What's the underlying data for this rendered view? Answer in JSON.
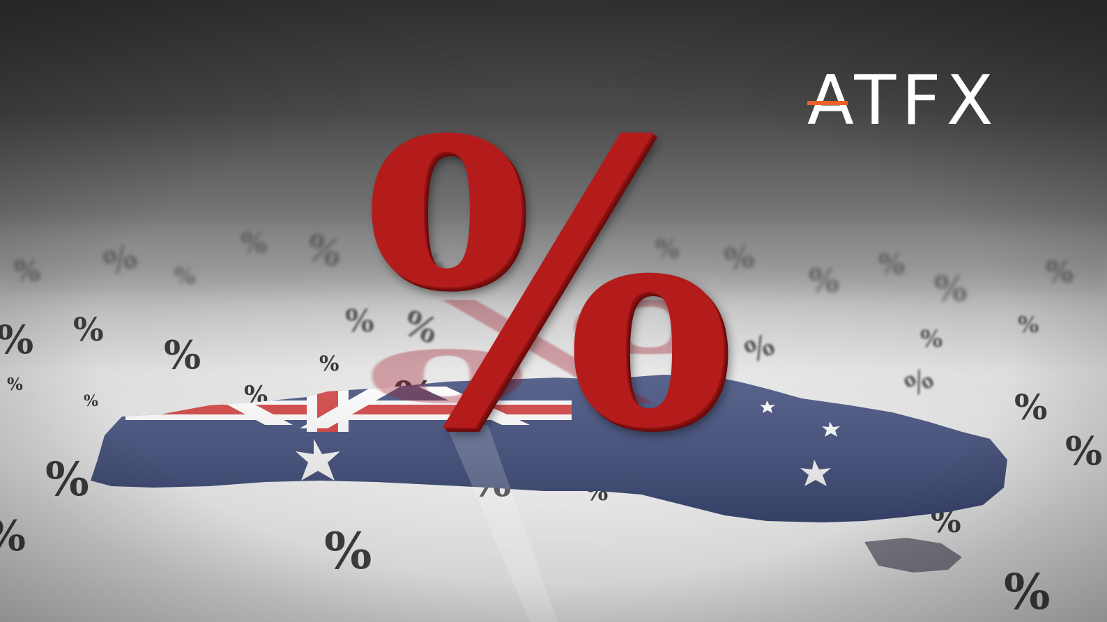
{
  "logo": {
    "text": "ATFX",
    "accent_color": "#e8632a",
    "text_color": "#ffffff"
  },
  "main_symbol": {
    "glyph": "%",
    "color": "#b41c1c"
  },
  "scattered_symbol": "%",
  "flag_colors": {
    "blue": "#3d4a7a",
    "red": "#d23a3a",
    "white": "#ffffff"
  }
}
